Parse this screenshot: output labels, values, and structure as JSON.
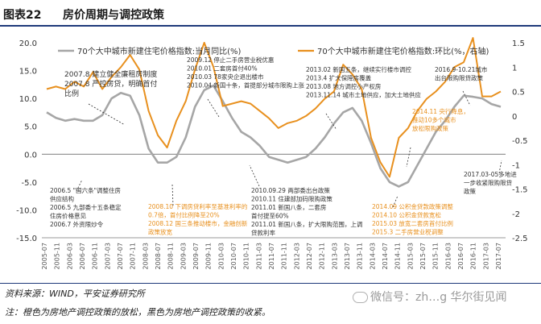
{
  "header": {
    "figure_no": "图表22",
    "title": "房价周期与调控政策"
  },
  "footer": {
    "source": "资料来源：WIND，平安证券研究所",
    "note": "注：橙色为房地产调控政策的放松，黑色为房地产调控政策的收紧。",
    "watermark": "微信号：zh…g 华尔街见闻"
  },
  "colors": {
    "gray_series": "#a6a6a6",
    "orange_series": "#e8901e",
    "title_rule": "#1f3a7a",
    "loosen_text": "#e8901e",
    "tighten_text": "#333333"
  },
  "chart_data": {
    "type": "line",
    "left_axis": {
      "ticks": [
        "20.0",
        "15.0",
        "10.0",
        "5.0",
        "0.0",
        "-5.0",
        "-10.0",
        "-15.0"
      ],
      "range": [
        -15,
        20
      ]
    },
    "right_axis": {
      "ticks": [
        "1.5",
        "1",
        "0.5",
        "0",
        "-0.5",
        "-1",
        "-1.5",
        "-2",
        "-2.5"
      ],
      "range": [
        -2.5,
        1.5
      ]
    },
    "x_labels": [
      "2005-07",
      "2005-11",
      "2006-03",
      "2006-07",
      "2006-11",
      "2007-03",
      "2007-07",
      "2007-11",
      "2008-03",
      "2008-07",
      "2008-11",
      "2009-03",
      "2009-07",
      "2009-11",
      "2010-03",
      "2010-07",
      "2010-11",
      "2011-03",
      "2011-07",
      "2011-11",
      "2012-03",
      "2012-07",
      "2012-11",
      "2013-03",
      "2013-07",
      "2013-11",
      "2014-03",
      "2014-07",
      "2014-11",
      "2015-03",
      "2015-07",
      "2015-11",
      "2016-03",
      "2016-07",
      "2016-11",
      "2017-03",
      "2017-07"
    ],
    "series": [
      {
        "name": "70个大中城市新建住宅价格指数:当月同比(%)",
        "axis": "left",
        "values": [
          7.5,
          6.5,
          6.0,
          6.3,
          6.0,
          6.0,
          7.0,
          10.0,
          11.0,
          10.5,
          7.0,
          1.0,
          -1.5,
          -1.5,
          -0.5,
          3.0,
          8.5,
          11.5,
          12.3,
          9.5,
          6.5,
          4.0,
          3.0,
          1.5,
          -0.5,
          -1.0,
          -1.5,
          -1.0,
          -0.5,
          1.0,
          3.0,
          5.5,
          7.5,
          8.3,
          6.0,
          2.0,
          -2.5,
          -5.0,
          -5.8,
          -5.0,
          -2.0,
          1.0,
          4.0,
          6.0,
          8.5,
          10.5,
          10.3,
          10.0,
          9.0,
          8.5
        ]
      },
      {
        "name": "70个大中城市新建住宅价格指数:环比(%，右轴)",
        "axis": "right",
        "values": [
          0.55,
          0.6,
          0.55,
          0.7,
          0.6,
          0.9,
          0.55,
          0.8,
          1.0,
          1.25,
          0.95,
          0.1,
          -0.4,
          -0.65,
          -0.1,
          0.3,
          0.95,
          1.5,
          1.0,
          0.2,
          0.25,
          0.3,
          0.25,
          0.1,
          -0.05,
          -0.25,
          -0.15,
          -0.1,
          0.0,
          0.15,
          0.35,
          0.5,
          1.05,
          0.85,
          0.55,
          -0.45,
          -0.95,
          -1.25,
          -0.45,
          -0.25,
          0.1,
          0.35,
          0.5,
          0.7,
          1.0,
          1.1,
          1.6,
          0.4,
          0.4,
          0.5
        ]
      }
    ]
  },
  "annotations": [
    {
      "id": "a1",
      "color": "tighten",
      "lines": [
        "2007.8 建立健全廉租房制度",
        "2007.8 严控房贷，明确首付",
        "比例"
      ]
    },
    {
      "id": "a2",
      "color": "tighten",
      "lines": [
        "2009.12 停止二手房营业税优惠",
        "2010.01 二套房首付40%",
        "2010.03 78家央企退出楼市",
        "2010.04 新国十条，首提部分城市限购上涨"
      ]
    },
    {
      "id": "a3",
      "color": "tighten",
      "lines": [
        "2013.02 新国五条，继续实行楼市调控",
        "2013.4 扩大保障房覆盖",
        "2013.08 地方调控小产权房",
        "2013.11.14 城市土地供应，加大土地供应"
      ]
    },
    {
      "id": "a4",
      "color": "tighten",
      "lines": [
        "2016.9-10.21城市",
        "出台限购限贷政策"
      ]
    },
    {
      "id": "a5",
      "color": "loosen",
      "lines": [
        "2014.11 央行降息，",
        "推动10多个城市",
        "放松限购政策"
      ]
    },
    {
      "id": "a6",
      "color": "tighten",
      "lines": [
        "2006.5 \"国六条\"调整住房",
        "供应结构",
        "2006.5 九部委十五条稳定",
        "住房价格意见",
        "2006.7 外资限炒令"
      ]
    },
    {
      "id": "a7",
      "color": "loosen",
      "lines": [
        "2008.10 下调房贷利率至基准利率的",
        "0.7倍，首付比例降至20%",
        "2008.12 国三条推动楼市，金融创新",
        "政策放宽"
      ]
    },
    {
      "id": "a8",
      "color": "tighten",
      "lines": [
        "2010.09.29 两部委出台政策",
        "2010.11 住建部加码限购政策",
        "2011.01 新国八条，二套房",
        "首付提至60%",
        "2011.01 新国八条，扩大限购范围，上调",
        "贷款利率"
      ]
    },
    {
      "id": "a9",
      "color": "loosen",
      "lines": [
        "2014.09 公积金贷款政策调整",
        "2014.10 公积金贷款宽松",
        "2015.03 放宽二套房首付比例",
        "2015.3 二手房营业税调整"
      ]
    },
    {
      "id": "a10",
      "color": "tighten",
      "lines": [
        "2017.03-05多地进",
        "一步收紧限购限贷",
        "政策"
      ]
    }
  ]
}
